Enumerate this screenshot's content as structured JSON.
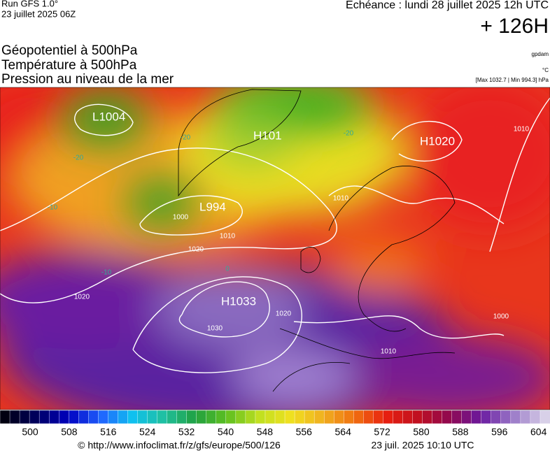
{
  "header": {
    "run": "Run GFS 1.0°",
    "date": "23 juillet 2025 06Z",
    "valid": "Echéance : lundi 28 juillet 2025 12h UTC",
    "lead": "+ 126H"
  },
  "titles": [
    "Géopotentiel à 500hPa",
    "Température à 500hPa",
    "Pression au niveau de la mer"
  ],
  "units": [
    "gpdam",
    "°C",
    "[Max 1032.7 | Min 994.3] hPa"
  ],
  "centers": [
    "L1004",
    "H101",
    "L994",
    "H1033",
    "H1020"
  ],
  "isobars": [
    "1020",
    "1030",
    "1010",
    "1000",
    "1020",
    "1010",
    "1000",
    "1010",
    "1020",
    "1010"
  ],
  "isotherms": [
    "-20",
    "-20",
    "-20",
    "-10",
    "-10",
    "0"
  ],
  "colorbar": [
    500,
    508,
    516,
    524,
    532,
    540,
    548,
    556,
    564,
    572,
    580,
    588,
    596,
    604
  ],
  "footer": {
    "url": "© http://www.infoclimat.fr/z/gfs/europe/500/126",
    "stamp": "23 juil. 2025 10:10 UTC"
  }
}
